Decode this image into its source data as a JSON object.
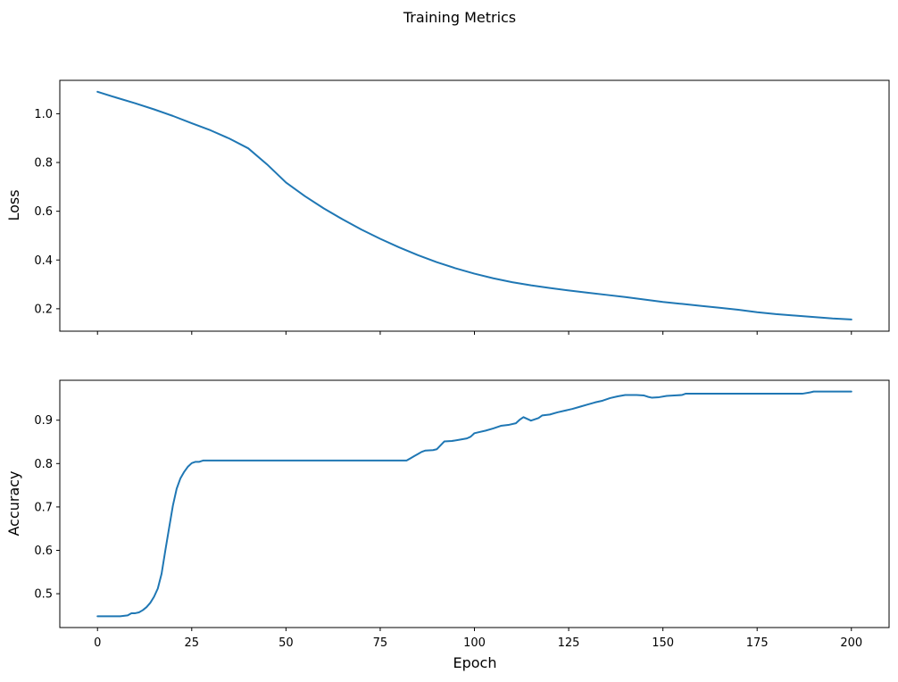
{
  "title": "Training Metrics",
  "line_color": "#1f77b4",
  "chart_data": [
    {
      "type": "line",
      "name": "loss",
      "title": "",
      "xlabel": "",
      "ylabel": "Loss",
      "grid": false,
      "legend": "none",
      "xlim": [
        -10,
        210
      ],
      "ylim": [
        0.108,
        1.137
      ],
      "x_ticks": [
        0,
        25,
        50,
        75,
        100,
        125,
        150,
        175,
        200
      ],
      "x_tick_labels": [
        "",
        "",
        "",
        "",
        "",
        "",
        "",
        "",
        ""
      ],
      "y_ticks": [
        0.2,
        0.4,
        0.6,
        0.8,
        1.0
      ],
      "y_tick_labels": [
        "0.2",
        "0.4",
        "0.6",
        "0.8",
        "1.0"
      ],
      "series": [
        {
          "name": "loss",
          "color": "#1f77b4",
          "x": [
            0,
            5,
            10,
            15,
            20,
            25,
            30,
            35,
            40,
            45,
            50,
            55,
            60,
            65,
            70,
            75,
            80,
            85,
            90,
            95,
            100,
            105,
            110,
            115,
            120,
            125,
            130,
            135,
            140,
            145,
            150,
            155,
            160,
            165,
            170,
            175,
            180,
            185,
            190,
            195,
            200
          ],
          "y": [
            1.09,
            1.066,
            1.043,
            1.018,
            0.991,
            0.961,
            0.932,
            0.898,
            0.858,
            0.792,
            0.718,
            0.662,
            0.612,
            0.567,
            0.525,
            0.487,
            0.452,
            0.42,
            0.391,
            0.366,
            0.344,
            0.325,
            0.309,
            0.296,
            0.285,
            0.275,
            0.266,
            0.257,
            0.248,
            0.238,
            0.228,
            0.22,
            0.212,
            0.204,
            0.196,
            0.186,
            0.178,
            0.172,
            0.166,
            0.16,
            0.156
          ]
        }
      ]
    },
    {
      "type": "line",
      "name": "accuracy",
      "title": "",
      "xlabel": "Epoch",
      "ylabel": "Accuracy",
      "grid": false,
      "legend": "none",
      "xlim": [
        -10,
        210
      ],
      "ylim": [
        0.422,
        0.992
      ],
      "x_ticks": [
        0,
        25,
        50,
        75,
        100,
        125,
        150,
        175,
        200
      ],
      "x_tick_labels": [
        "0",
        "25",
        "50",
        "75",
        "100",
        "125",
        "150",
        "175",
        "200"
      ],
      "y_ticks": [
        0.5,
        0.6,
        0.7,
        0.8,
        0.9
      ],
      "y_tick_labels": [
        "0.5",
        "0.6",
        "0.7",
        "0.8",
        "0.9"
      ],
      "series": [
        {
          "name": "accuracy",
          "color": "#1f77b4",
          "x": [
            0,
            3,
            6,
            8,
            9,
            10,
            11,
            12,
            13,
            14,
            15,
            16,
            17,
            18,
            19,
            20,
            21,
            22,
            23,
            24,
            25,
            26,
            27,
            28,
            30,
            40,
            50,
            60,
            70,
            80,
            82,
            83,
            84,
            85,
            86,
            87,
            89,
            90,
            91,
            92,
            94,
            96,
            98,
            99,
            100,
            101,
            103,
            105,
            107,
            109,
            111,
            112,
            113,
            115,
            117,
            118,
            120,
            122,
            124,
            126,
            128,
            130,
            132,
            134,
            136,
            138,
            140,
            143,
            145,
            146,
            147,
            149,
            151,
            153,
            155,
            156,
            160,
            170,
            180,
            187,
            189,
            190,
            195,
            200
          ],
          "y": [
            0.448,
            0.448,
            0.448,
            0.45,
            0.455,
            0.455,
            0.457,
            0.462,
            0.469,
            0.479,
            0.493,
            0.512,
            0.546,
            0.6,
            0.652,
            0.703,
            0.742,
            0.766,
            0.781,
            0.793,
            0.801,
            0.804,
            0.804,
            0.807,
            0.807,
            0.807,
            0.807,
            0.807,
            0.807,
            0.807,
            0.807,
            0.812,
            0.817,
            0.822,
            0.827,
            0.83,
            0.831,
            0.833,
            0.842,
            0.851,
            0.852,
            0.855,
            0.858,
            0.862,
            0.87,
            0.872,
            0.876,
            0.881,
            0.887,
            0.889,
            0.893,
            0.901,
            0.907,
            0.899,
            0.905,
            0.911,
            0.913,
            0.918,
            0.922,
            0.926,
            0.931,
            0.936,
            0.941,
            0.945,
            0.951,
            0.955,
            0.958,
            0.958,
            0.957,
            0.954,
            0.952,
            0.953,
            0.956,
            0.957,
            0.958,
            0.961,
            0.961,
            0.961,
            0.961,
            0.961,
            0.964,
            0.966,
            0.966,
            0.966
          ]
        }
      ]
    }
  ]
}
